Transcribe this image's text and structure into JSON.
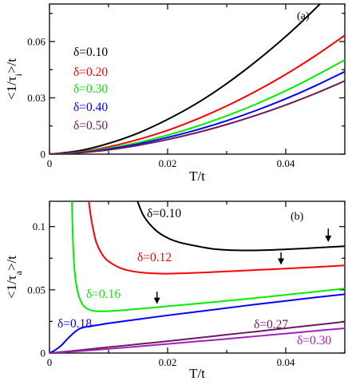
{
  "chart_data": [
    {
      "type": "line",
      "panel_label": "(a)",
      "xlabel": "T/t",
      "ylabel": "<1/τ_i>/t",
      "ylabel_parts": {
        "pre": "<1/τ",
        "sub": "i",
        "post": ">/t"
      },
      "xlim": [
        0,
        0.05
      ],
      "ylim": [
        0,
        0.08
      ],
      "xticks": [
        0,
        0.02,
        0.04
      ],
      "xtick_labels": [
        "0",
        "0.02",
        "0.04"
      ],
      "yticks": [
        0,
        0.03,
        0.06
      ],
      "ytick_labels": [
        "0",
        "0.03",
        "0.06"
      ],
      "grid": false,
      "legend_placement": "left",
      "series": [
        {
          "name": "δ=0.10",
          "color": "#000000",
          "x": [
            0,
            0.005,
            0.01,
            0.015,
            0.02,
            0.025,
            0.03,
            0.035,
            0.04,
            0.045,
            0.05
          ],
          "y": [
            0,
            0.0018,
            0.0057,
            0.0112,
            0.0185,
            0.0272,
            0.0376,
            0.0495,
            0.0627,
            0.0775,
            0.0935
          ]
        },
        {
          "name": "δ=0.20",
          "color": "#ff0000",
          "x": [
            0,
            0.005,
            0.01,
            0.015,
            0.02,
            0.025,
            0.03,
            0.035,
            0.04,
            0.045,
            0.05
          ],
          "y": [
            0,
            0.0012,
            0.0039,
            0.0078,
            0.0127,
            0.0187,
            0.0257,
            0.0336,
            0.0425,
            0.0524,
            0.0633
          ]
        },
        {
          "name": "δ=0.30",
          "color": "#00ee00",
          "x": [
            0,
            0.005,
            0.01,
            0.015,
            0.02,
            0.025,
            0.03,
            0.035,
            0.04,
            0.045,
            0.05
          ],
          "y": [
            0,
            0.001,
            0.0032,
            0.0062,
            0.0101,
            0.0149,
            0.0204,
            0.0267,
            0.0338,
            0.0417,
            0.0502
          ]
        },
        {
          "name": "δ=0.40",
          "color": "#0000ff",
          "x": [
            0,
            0.005,
            0.01,
            0.015,
            0.02,
            0.025,
            0.03,
            0.035,
            0.04,
            0.045,
            0.05
          ],
          "y": [
            0,
            0.0008,
            0.0027,
            0.0054,
            0.0089,
            0.013,
            0.0178,
            0.0233,
            0.0295,
            0.0364,
            0.044
          ]
        },
        {
          "name": "δ=0.50",
          "color": "#6b1a5e",
          "x": [
            0,
            0.005,
            0.01,
            0.015,
            0.02,
            0.025,
            0.03,
            0.035,
            0.04,
            0.045,
            0.05
          ],
          "y": [
            0,
            0.0007,
            0.0023,
            0.0047,
            0.0078,
            0.0115,
            0.0158,
            0.0207,
            0.0262,
            0.0323,
            0.039
          ]
        }
      ]
    },
    {
      "type": "line",
      "panel_label": "(b)",
      "xlabel": "T/t",
      "ylabel": "<1/τ_a>/t",
      "ylabel_parts": {
        "pre": "<1/τ",
        "sub": "a",
        "post": ">/t"
      },
      "xlim": [
        0,
        0.05
      ],
      "ylim": [
        0,
        0.12
      ],
      "xticks": [
        0,
        0.02,
        0.04
      ],
      "xtick_labels": [
        "0",
        "0.02",
        "0.04"
      ],
      "yticks": [
        0,
        0.05,
        0.1
      ],
      "ytick_labels": [
        "0",
        "0.05",
        "0.1"
      ],
      "grid": false,
      "series": [
        {
          "name": "δ=0.10",
          "color": "#000000",
          "x": [
            0.0149,
            0.016,
            0.018,
            0.02,
            0.022,
            0.025,
            0.028,
            0.032,
            0.036,
            0.04,
            0.045,
            0.05
          ],
          "y": [
            0.12,
            0.108,
            0.097,
            0.091,
            0.0875,
            0.0845,
            0.0822,
            0.0812,
            0.0813,
            0.082,
            0.0832,
            0.0845
          ]
        },
        {
          "name": "δ=0.12",
          "color": "#ff0000",
          "x": [
            0.00665,
            0.007,
            0.0075,
            0.008,
            0.009,
            0.01,
            0.012,
            0.014,
            0.016,
            0.018,
            0.02,
            0.024,
            0.028,
            0.032,
            0.036,
            0.04,
            0.045,
            0.05
          ],
          "y": [
            0.12,
            0.108,
            0.0955,
            0.0865,
            0.0775,
            0.0725,
            0.0672,
            0.0647,
            0.0635,
            0.0629,
            0.0628,
            0.0633,
            0.0641,
            0.065,
            0.0659,
            0.0668,
            0.068,
            0.0693
          ]
        },
        {
          "name": "δ=0.16",
          "color": "#00ee00",
          "x": [
            0.0038,
            0.0039,
            0.004,
            0.0042,
            0.0045,
            0.005,
            0.0055,
            0.006,
            0.007,
            0.008,
            0.01,
            0.012,
            0.015,
            0.02,
            0.025,
            0.03,
            0.035,
            0.04,
            0.045,
            0.05
          ],
          "y": [
            0.12,
            0.1,
            0.085,
            0.068,
            0.055,
            0.0445,
            0.0392,
            0.0362,
            0.0338,
            0.0331,
            0.0331,
            0.0337,
            0.0349,
            0.037,
            0.0391,
            0.0413,
            0.0436,
            0.046,
            0.0485,
            0.051
          ]
        },
        {
          "name": "δ=0.18",
          "color": "#0000ff",
          "x": [
            0,
            0.001,
            0.002,
            0.003,
            0.004,
            0.005,
            0.006,
            0.008,
            0.01,
            0.015,
            0.02,
            0.025,
            0.03,
            0.035,
            0.04,
            0.045,
            0.05
          ],
          "y": [
            0,
            0.0025,
            0.006,
            0.011,
            0.0155,
            0.019,
            0.0205,
            0.022,
            0.0235,
            0.0267,
            0.0298,
            0.0327,
            0.0356,
            0.0385,
            0.0412,
            0.044,
            0.0465
          ]
        },
        {
          "name": "δ=0.27",
          "color": "#6b1a5e",
          "x": [
            0,
            0.005,
            0.01,
            0.015,
            0.02,
            0.025,
            0.03,
            0.035,
            0.04,
            0.045,
            0.05
          ],
          "y": [
            0,
            0.0022,
            0.0047,
            0.007,
            0.0094,
            0.0119,
            0.0145,
            0.017,
            0.0196,
            0.0222,
            0.0248
          ]
        },
        {
          "name": "δ=0.30",
          "color": "#a020c0",
          "x": [
            0,
            0.005,
            0.01,
            0.015,
            0.02,
            0.025,
            0.03,
            0.035,
            0.04,
            0.045,
            0.05
          ],
          "y": [
            0,
            0.0015,
            0.0033,
            0.0052,
            0.0072,
            0.0092,
            0.0112,
            0.0133,
            0.0154,
            0.0175,
            0.0196
          ]
        }
      ],
      "arrows": [
        {
          "x": 0.0472,
          "y_tail": 0.0985,
          "y_head": 0.0865
        },
        {
          "x": 0.0392,
          "y_tail": 0.0795,
          "y_head": 0.0685
        },
        {
          "x": 0.0182,
          "y_tail": 0.0485,
          "y_head": 0.0375
        }
      ]
    }
  ]
}
